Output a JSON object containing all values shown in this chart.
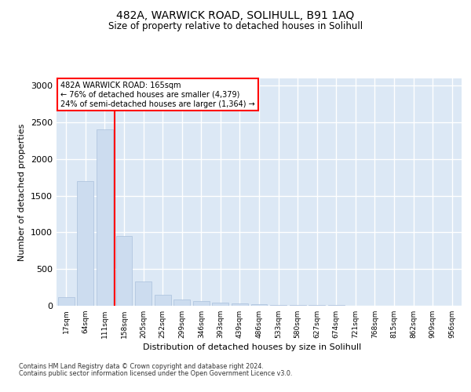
{
  "title": "482A, WARWICK ROAD, SOLIHULL, B91 1AQ",
  "subtitle": "Size of property relative to detached houses in Solihull",
  "xlabel": "Distribution of detached houses by size in Solihull",
  "ylabel": "Number of detached properties",
  "bar_color": "#ccdcef",
  "bar_edge_color": "#aac0dc",
  "bg_color": "#dce8f5",
  "fig_bg": "#ffffff",
  "grid_color": "#ffffff",
  "categories": [
    "17sqm",
    "64sqm",
    "111sqm",
    "158sqm",
    "205sqm",
    "252sqm",
    "299sqm",
    "346sqm",
    "393sqm",
    "439sqm",
    "486sqm",
    "533sqm",
    "580sqm",
    "627sqm",
    "674sqm",
    "721sqm",
    "768sqm",
    "815sqm",
    "862sqm",
    "909sqm",
    "956sqm"
  ],
  "values": [
    120,
    1700,
    2400,
    950,
    330,
    150,
    90,
    60,
    45,
    30,
    20,
    15,
    10,
    8,
    6,
    5,
    4,
    3,
    3,
    2,
    2
  ],
  "ylim": [
    0,
    3100
  ],
  "yticks": [
    0,
    500,
    1000,
    1500,
    2000,
    2500,
    3000
  ],
  "red_line_x": 2.5,
  "annotation_title": "482A WARWICK ROAD: 165sqm",
  "annotation_line1": "← 76% of detached houses are smaller (4,379)",
  "annotation_line2": "24% of semi-detached houses are larger (1,364) →",
  "footer1": "Contains HM Land Registry data © Crown copyright and database right 2024.",
  "footer2": "Contains public sector information licensed under the Open Government Licence v3.0."
}
